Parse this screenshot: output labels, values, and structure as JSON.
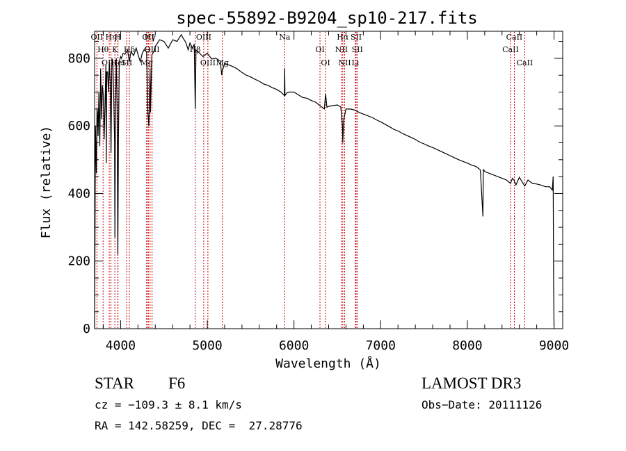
{
  "chart_data": {
    "type": "line",
    "title": "spec-55892-B9204_sp10-217.fits",
    "xlabel": "Wavelength (Å)",
    "ylabel": "Flux (relative)",
    "xlim": [
      3700,
      9100
    ],
    "ylim": [
      0,
      880
    ],
    "xticks": [
      4000,
      5000,
      6000,
      7000,
      8000,
      9000
    ],
    "yticks": [
      0,
      200,
      400,
      600,
      800
    ],
    "series": [
      {
        "name": "flux",
        "x": [
          3700,
          3705,
          3710,
          3720,
          3728,
          3734,
          3740,
          3750,
          3760,
          3770,
          3780,
          3790,
          3800,
          3810,
          3820,
          3830,
          3835,
          3840,
          3850,
          3860,
          3870,
          3880,
          3889,
          3900,
          3910,
          3920,
          3930,
          3934,
          3940,
          3950,
          3960,
          3968,
          3975,
          3985,
          4000,
          4010,
          4030,
          4050,
          4080,
          4101,
          4120,
          4150,
          4180,
          4200,
          4227,
          4250,
          4270,
          4300,
          4315,
          4326,
          4340,
          4345,
          4360,
          4383,
          4400,
          4450,
          4500,
          4550,
          4600,
          4650,
          4700,
          4720,
          4750,
          4780,
          4800,
          4830,
          4850,
          4861,
          4870,
          4900,
          4950,
          5000,
          5050,
          5100,
          5150,
          5167,
          5172,
          5183,
          5200,
          5250,
          5300,
          5350,
          5400,
          5450,
          5500,
          5550,
          5600,
          5650,
          5700,
          5750,
          5800,
          5850,
          5889,
          5893,
          5896,
          5920,
          5950,
          6000,
          6050,
          6100,
          6150,
          6200,
          6250,
          6300,
          6350,
          6365,
          6380,
          6400,
          6450,
          6500,
          6540,
          6560,
          6563,
          6575,
          6600,
          6650,
          6700,
          6750,
          6800,
          6850,
          6900,
          6950,
          7000,
          7050,
          7100,
          7150,
          7200,
          7250,
          7300,
          7350,
          7400,
          7450,
          7500,
          7550,
          7600,
          7650,
          7700,
          7750,
          7800,
          7850,
          7900,
          7950,
          8000,
          8050,
          8100,
          8150,
          8180,
          8184,
          8190,
          8200,
          8250,
          8300,
          8350,
          8400,
          8450,
          8498,
          8520,
          8542,
          8560,
          8600,
          8662,
          8700,
          8750,
          8800,
          8850,
          8900,
          8950,
          8980,
          8990,
          8995,
          9000,
          9002
        ],
        "y": [
          3,
          270,
          600,
          460,
          650,
          640,
          570,
          700,
          540,
          770,
          620,
          720,
          690,
          560,
          660,
          780,
          490,
          760,
          760,
          700,
          790,
          730,
          520,
          800,
          790,
          700,
          560,
          270,
          650,
          800,
          640,
          220,
          560,
          790,
          805,
          800,
          815,
          812,
          825,
          790,
          820,
          808,
          830,
          812,
          790,
          815,
          825,
          820,
          640,
          600,
          770,
          640,
          810,
          820,
          835,
          855,
          850,
          830,
          855,
          850,
          870,
          860,
          848,
          825,
          845,
          830,
          842,
          650,
          825,
          818,
          805,
          815,
          798,
          800,
          792,
          750,
          762,
          770,
          785,
          780,
          775,
          768,
          758,
          750,
          745,
          738,
          732,
          724,
          720,
          713,
          708,
          700,
          690,
          770,
          690,
          698,
          700,
          700,
          692,
          684,
          682,
          675,
          670,
          660,
          650,
          695,
          655,
          658,
          660,
          662,
          656,
          600,
          550,
          620,
          650,
          650,
          647,
          640,
          635,
          630,
          625,
          618,
          612,
          605,
          598,
          590,
          585,
          578,
          572,
          566,
          560,
          552,
          547,
          541,
          536,
          530,
          524,
          518,
          512,
          506,
          500,
          495,
          490,
          484,
          480,
          470,
          332,
          470,
          470,
          465,
          460,
          455,
          450,
          445,
          440,
          430,
          445,
          438,
          425,
          448,
          422,
          440,
          430,
          428,
          425,
          420,
          420,
          410,
          450,
          150,
          10,
          5
        ]
      }
    ],
    "line_labels": [
      {
        "label": "OII",
        "wavelength": 3727
      },
      {
        "label": "Hθ",
        "wavelength": 3798
      },
      {
        "label": "OIII",
        "wavelength": 3869
      },
      {
        "label": "Hη",
        "wavelength": 3889
      },
      {
        "label": "K",
        "wavelength": 3934
      },
      {
        "label": "HeI",
        "wavelength": 3970
      },
      {
        "label": "H",
        "wavelength": 3968
      },
      {
        "label": "Hδ",
        "wavelength": 4101
      },
      {
        "label": "SII",
        "wavelength": 4070
      },
      {
        "label": "OII",
        "wavelength": 4320
      },
      {
        "label": "G",
        "wavelength": 4305
      },
      {
        "label": "Mg",
        "wavelength": 4300
      },
      {
        "label": "Hγ",
        "wavelength": 4340
      },
      {
        "label": "OIII",
        "wavelength": 4363
      },
      {
        "label": "OIII",
        "wavelength": 5007
      },
      {
        "label": "OIII",
        "wavelength": 4959
      },
      {
        "label": "Hβ",
        "wavelength": 4861
      },
      {
        "label": "Mg",
        "wavelength": 5175
      },
      {
        "label": "Na",
        "wavelength": 5893
      },
      {
        "label": "OI",
        "wavelength": 6300
      },
      {
        "label": "OI",
        "wavelength": 6364
      },
      {
        "label": "Hα",
        "wavelength": 6563
      },
      {
        "label": "NII",
        "wavelength": 6548
      },
      {
        "label": "NII",
        "wavelength": 6584
      },
      {
        "label": "SII",
        "wavelength": 6717
      },
      {
        "label": "SII",
        "wavelength": 6731
      },
      {
        "label": "Li",
        "wavelength": 6708
      },
      {
        "label": "CaII",
        "wavelength": 8542
      },
      {
        "label": "CaII",
        "wavelength": 8498
      },
      {
        "label": "CaII",
        "wavelength": 8662
      }
    ],
    "grid": false,
    "legend": "none"
  },
  "info": {
    "object_class": "STAR",
    "subclass": "F6",
    "survey": "LAMOST DR3",
    "redshift": "cz = −109.3 ± 8.1 km/s",
    "obs_date": "Obs−Date: 20111126",
    "coords": "RA = 142.58259, DEC =  27.28776"
  }
}
